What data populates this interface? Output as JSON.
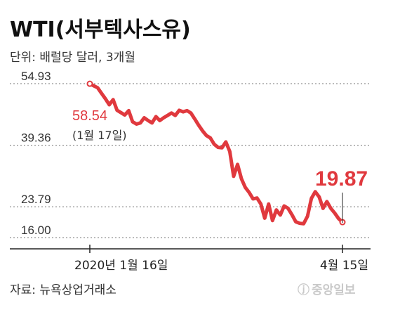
{
  "chart_data": {
    "type": "line",
    "title": "WTI(서부텍사스유)",
    "subtitle": "단위: 배럴당 달러, 3개월",
    "ylim": [
      16.0,
      54.93
    ],
    "y_ticks": [
      "54.93",
      "39.36",
      "23.79",
      "16.00"
    ],
    "x_ticks": [
      "2020년 1월 16일",
      "4월 15일"
    ],
    "grid": "dotted-horizontal",
    "series": [
      {
        "color": "#e0393e",
        "values": [
          54.9,
          54.4,
          53.9,
          52.5,
          51.1,
          49.6,
          50.9,
          48.2,
          47.6,
          47.0,
          48.1,
          45.3,
          44.7,
          45.0,
          46.3,
          45.6,
          45.0,
          46.6,
          45.6,
          46.3,
          46.9,
          47.5,
          46.9,
          48.2,
          47.8,
          48.1,
          47.5,
          46.0,
          44.4,
          43.0,
          41.8,
          41.2,
          39.6,
          38.8,
          38.7,
          40.2,
          37.8,
          31.5,
          34.5,
          30.9,
          28.7,
          27.4,
          25.8,
          26.0,
          24.5,
          20.9,
          24.5,
          20.3,
          23.0,
          21.7,
          24.0,
          23.4,
          21.8,
          20.0,
          19.6,
          19.5,
          21.4,
          25.9,
          27.6,
          26.3,
          23.4,
          25.1,
          23.4,
          22.2,
          20.8,
          19.9
        ]
      }
    ],
    "annotations": [
      {
        "label": "58.54",
        "note": "(1월 17일)"
      },
      {
        "label": "19.87"
      }
    ]
  },
  "source": "자료: 뉴욕상업거래소",
  "logo": {
    "glyph": "ⓙ",
    "text": "중앙일보"
  }
}
